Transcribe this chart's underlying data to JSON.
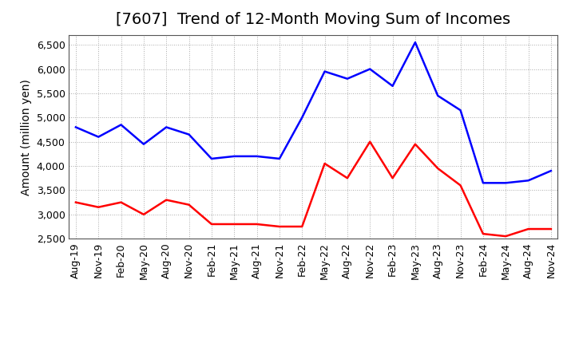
{
  "title": "[7607]  Trend of 12-Month Moving Sum of Incomes",
  "ylabel": "Amount (million yen)",
  "xlabels": [
    "Aug-19",
    "Nov-19",
    "Feb-20",
    "May-20",
    "Aug-20",
    "Nov-20",
    "Feb-21",
    "May-21",
    "Aug-21",
    "Nov-21",
    "Feb-22",
    "May-22",
    "Aug-22",
    "Nov-22",
    "Feb-23",
    "May-23",
    "Aug-23",
    "Nov-23",
    "Feb-24",
    "May-24",
    "Aug-24",
    "Nov-24"
  ],
  "ordinary_income": [
    4800,
    4600,
    4850,
    4450,
    4800,
    4650,
    4150,
    4200,
    4200,
    4150,
    5000,
    5950,
    5800,
    6000,
    5650,
    6550,
    5450,
    5150,
    3650,
    3650,
    3700,
    3900
  ],
  "net_income": [
    3250,
    3150,
    3250,
    3000,
    3300,
    3200,
    2800,
    2800,
    2800,
    2750,
    2750,
    4050,
    3750,
    4500,
    3750,
    4450,
    3950,
    3600,
    2600,
    2550,
    2700,
    2700
  ],
  "ordinary_color": "#0000ff",
  "net_color": "#ff0000",
  "ylim": [
    2500,
    6700
  ],
  "yticks": [
    2500,
    3000,
    3500,
    4000,
    4500,
    5000,
    5500,
    6000,
    6500
  ],
  "background_color": "#ffffff",
  "plot_bg_color": "#ffffff",
  "grid_color": "#aaaaaa",
  "title_fontsize": 14,
  "axis_fontsize": 9,
  "ylabel_fontsize": 10,
  "legend_fontsize": 10,
  "linewidth": 1.8
}
